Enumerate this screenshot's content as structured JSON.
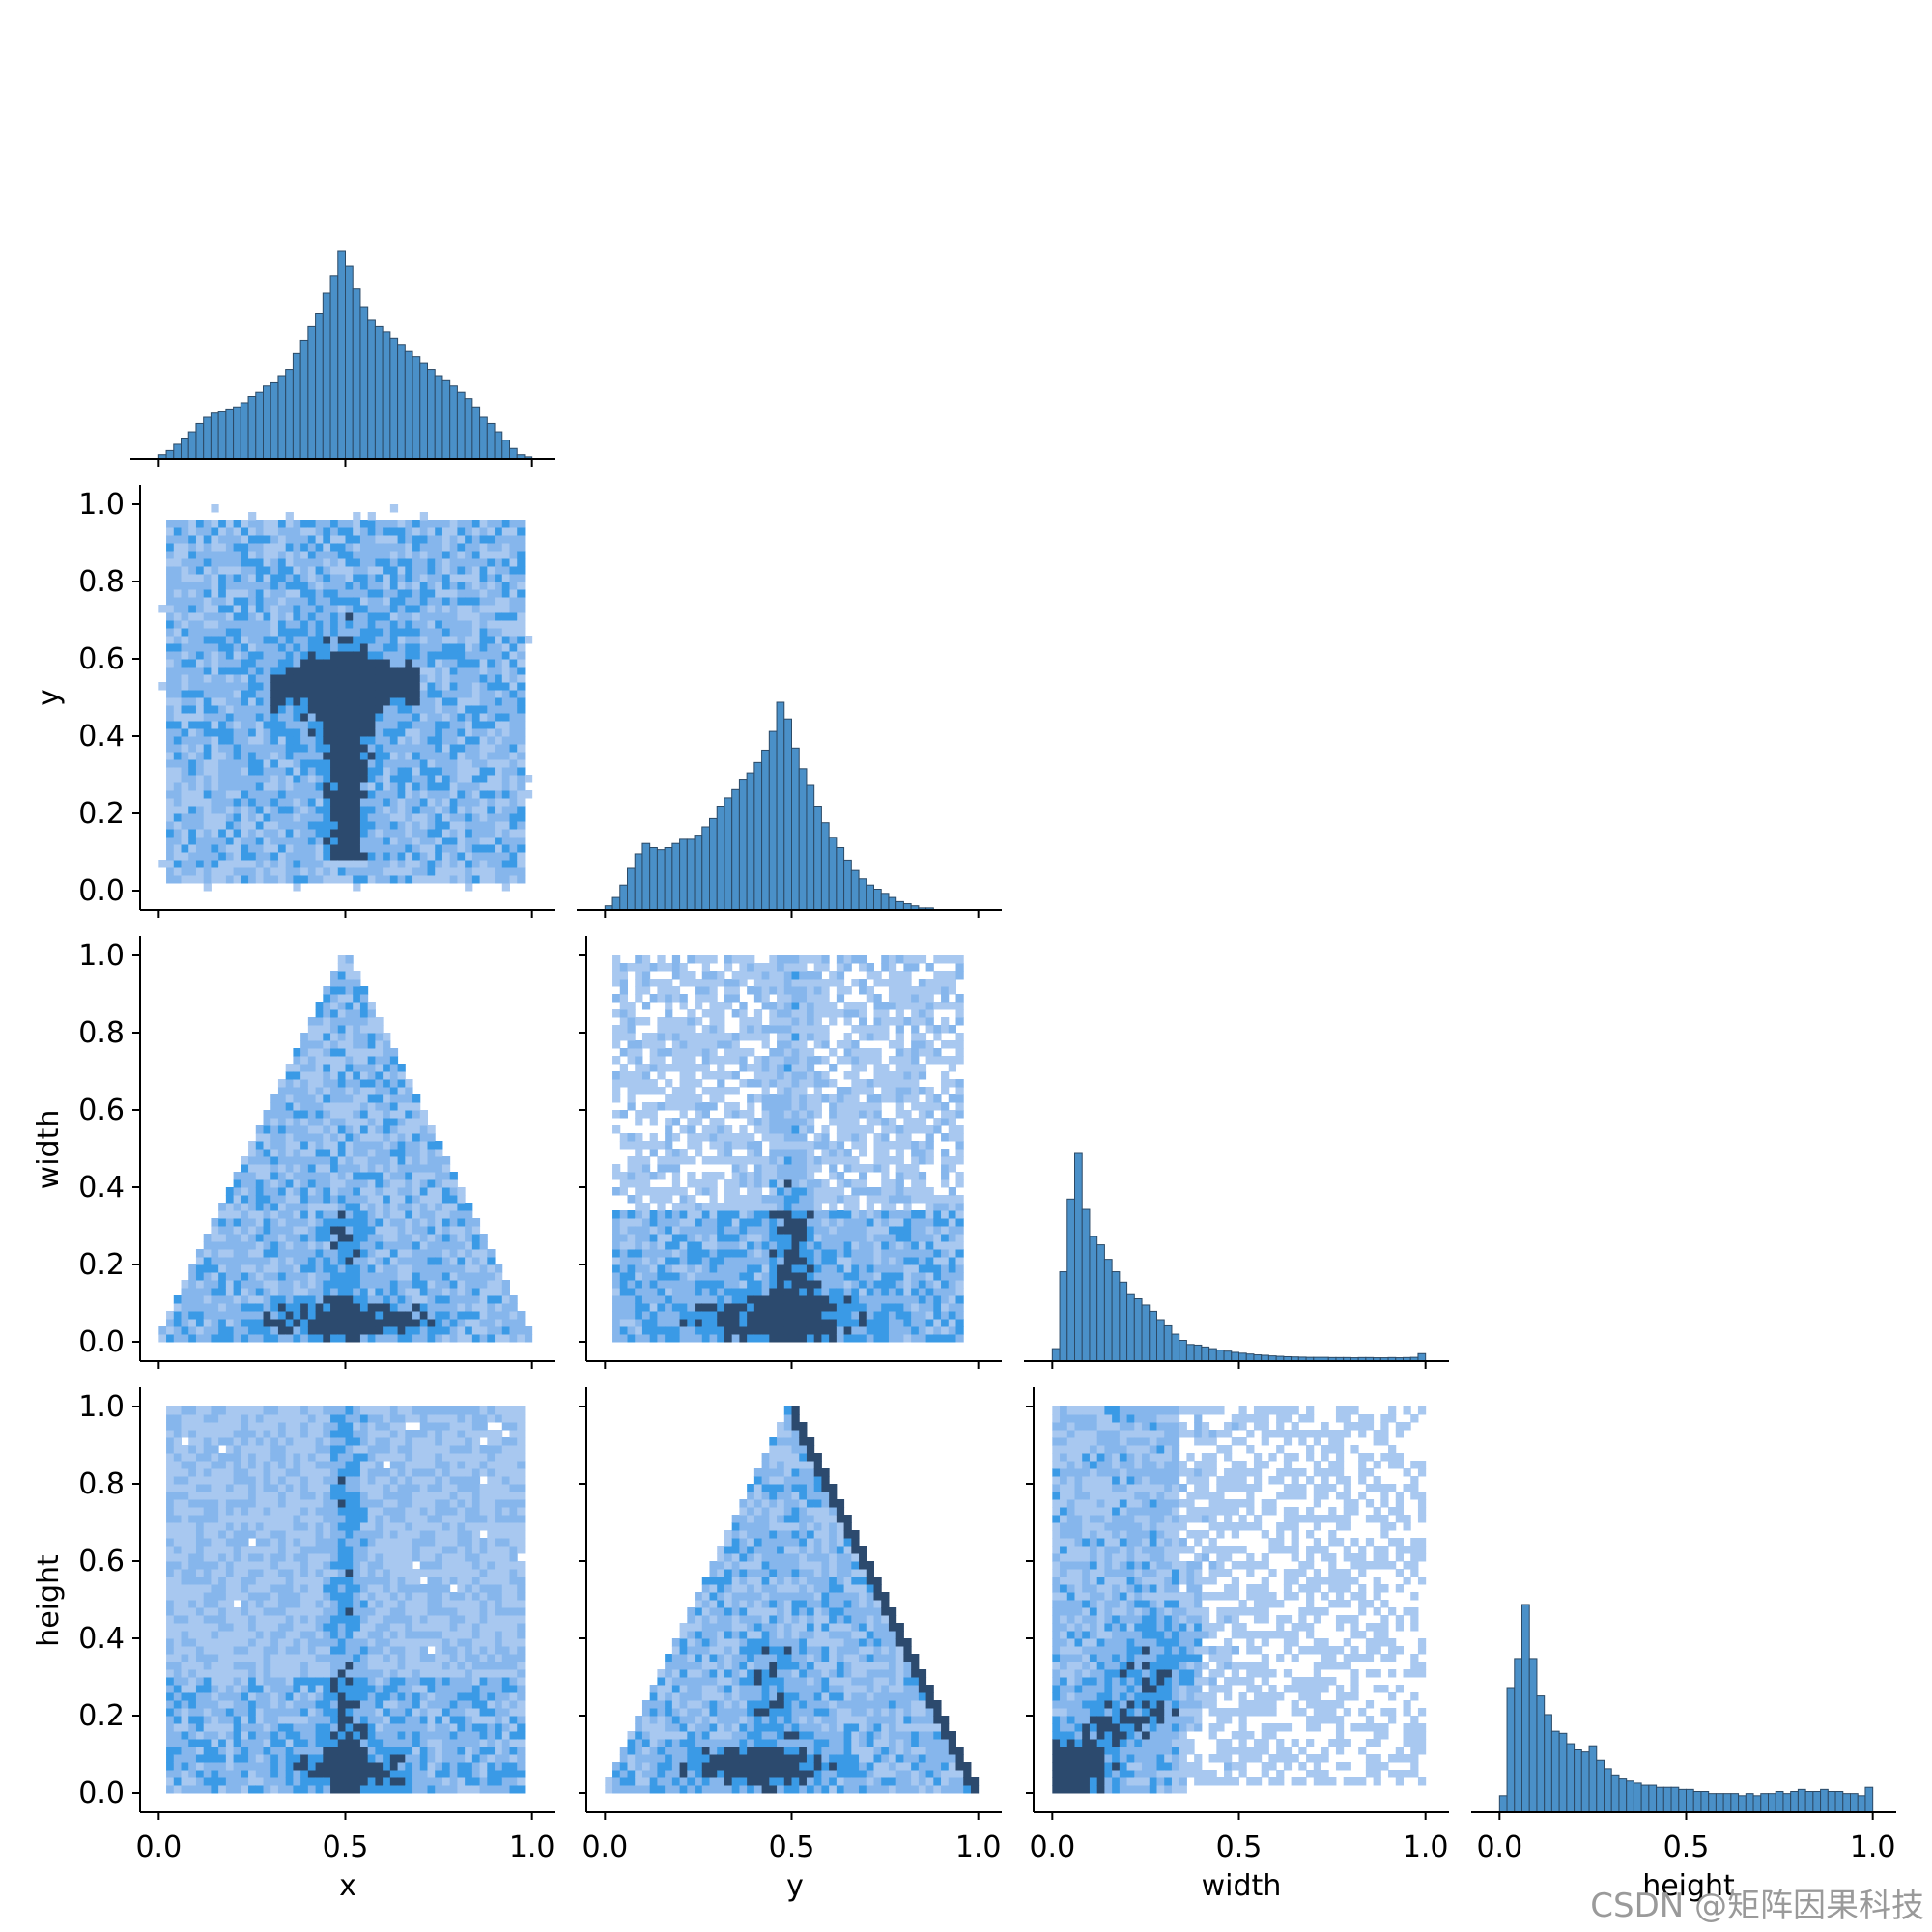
{
  "watermark": "CSDN @矩阵因果科技",
  "colors": {
    "bar_fill": "#4a90c8",
    "bar_edge": "#2c4a66",
    "heat_light": "#a8c8f0",
    "heat_mid": "#3a9ae6",
    "heat_dark": "#2c4a6e"
  },
  "chart_data": {
    "type": "pairplot",
    "variables": [
      "x",
      "y",
      "width",
      "height"
    ],
    "corner": true,
    "axis_ticks": {
      "x": [
        "0.0",
        "0.5",
        "1.0"
      ],
      "y": [
        "0.0",
        "0.5",
        "1.0"
      ],
      "width": [
        "0.0",
        "0.5",
        "1.0"
      ],
      "height": [
        "0.0",
        "0.5",
        "1.0"
      ]
    },
    "row_ticks": [
      "0.0",
      "0.2",
      "0.4",
      "0.6",
      "0.8",
      "1.0"
    ],
    "xlim": [
      -0.05,
      1.05
    ],
    "ylim": [
      -0.05,
      1.05
    ],
    "diagonal": [
      {
        "variable": "x",
        "type": "histogram",
        "bins": 50,
        "values": [
          0.02,
          0.04,
          0.07,
          0.1,
          0.13,
          0.17,
          0.2,
          0.22,
          0.23,
          0.24,
          0.25,
          0.27,
          0.3,
          0.32,
          0.35,
          0.37,
          0.4,
          0.43,
          0.51,
          0.57,
          0.64,
          0.7,
          0.8,
          0.88,
          1.0,
          0.93,
          0.82,
          0.73,
          0.67,
          0.64,
          0.61,
          0.58,
          0.55,
          0.52,
          0.49,
          0.46,
          0.43,
          0.4,
          0.38,
          0.35,
          0.32,
          0.29,
          0.25,
          0.2,
          0.17,
          0.13,
          0.09,
          0.05,
          0.02,
          0.01
        ]
      },
      {
        "variable": "y",
        "type": "histogram",
        "bins": 50,
        "values": [
          0.02,
          0.06,
          0.12,
          0.2,
          0.27,
          0.32,
          0.3,
          0.29,
          0.3,
          0.32,
          0.34,
          0.34,
          0.36,
          0.4,
          0.44,
          0.5,
          0.54,
          0.58,
          0.63,
          0.66,
          0.71,
          0.77,
          0.86,
          1.0,
          0.92,
          0.78,
          0.68,
          0.6,
          0.5,
          0.42,
          0.35,
          0.3,
          0.24,
          0.19,
          0.15,
          0.12,
          0.1,
          0.08,
          0.06,
          0.04,
          0.03,
          0.02,
          0.01,
          0.01,
          0.0,
          0.0,
          0.0,
          0.0,
          0.0,
          0.0
        ]
      },
      {
        "variable": "width",
        "type": "histogram",
        "bins": 50,
        "values": [
          0.06,
          0.43,
          0.78,
          1.0,
          0.73,
          0.6,
          0.56,
          0.49,
          0.43,
          0.38,
          0.32,
          0.3,
          0.27,
          0.24,
          0.2,
          0.17,
          0.13,
          0.1,
          0.08,
          0.077,
          0.068,
          0.06,
          0.053,
          0.048,
          0.042,
          0.038,
          0.034,
          0.03,
          0.028,
          0.025,
          0.023,
          0.021,
          0.02,
          0.019,
          0.018,
          0.018,
          0.018,
          0.017,
          0.017,
          0.017,
          0.016,
          0.017,
          0.017,
          0.016,
          0.016,
          0.017,
          0.016,
          0.017,
          0.018,
          0.036
        ]
      },
      {
        "variable": "height",
        "type": "histogram",
        "bins": 50,
        "values": [
          0.08,
          0.6,
          0.74,
          1.0,
          0.74,
          0.56,
          0.47,
          0.39,
          0.38,
          0.33,
          0.3,
          0.29,
          0.32,
          0.25,
          0.21,
          0.18,
          0.16,
          0.15,
          0.14,
          0.13,
          0.13,
          0.12,
          0.12,
          0.12,
          0.11,
          0.11,
          0.1,
          0.1,
          0.09,
          0.09,
          0.09,
          0.09,
          0.08,
          0.09,
          0.08,
          0.09,
          0.09,
          0.1,
          0.09,
          0.1,
          0.11,
          0.1,
          0.1,
          0.11,
          0.1,
          0.1,
          0.09,
          0.09,
          0.08,
          0.12
        ]
      }
    ],
    "off_diagonal": [
      {
        "x": "x",
        "y": "y",
        "type": "heatmap",
        "pattern": "cross-center",
        "note": "dense cluster around (0.5, 0.5) with vertical stem toward y=0.1"
      },
      {
        "x": "x",
        "y": "width",
        "type": "heatmap",
        "pattern": "triangle-apex",
        "note": "bounded by width <= 2*min(x,1-x), dense band near width 0.05"
      },
      {
        "x": "y",
        "y": "width",
        "type": "heatmap",
        "pattern": "column-band",
        "note": "dense band near width 0.05, vertical column near y=0.5"
      },
      {
        "x": "x",
        "y": "height",
        "type": "heatmap",
        "pattern": "vertical-band",
        "note": "dense band near height 0.05, column near x=0.5"
      },
      {
        "x": "y",
        "y": "height",
        "type": "heatmap",
        "pattern": "triangle-apex-dark-edge",
        "note": "bounded triangle with dark diagonal edge on right side"
      },
      {
        "x": "width",
        "y": "height",
        "type": "heatmap",
        "pattern": "corner-cluster",
        "note": "dense near (0.05, 0.05), sparse toward upper right"
      }
    ]
  }
}
